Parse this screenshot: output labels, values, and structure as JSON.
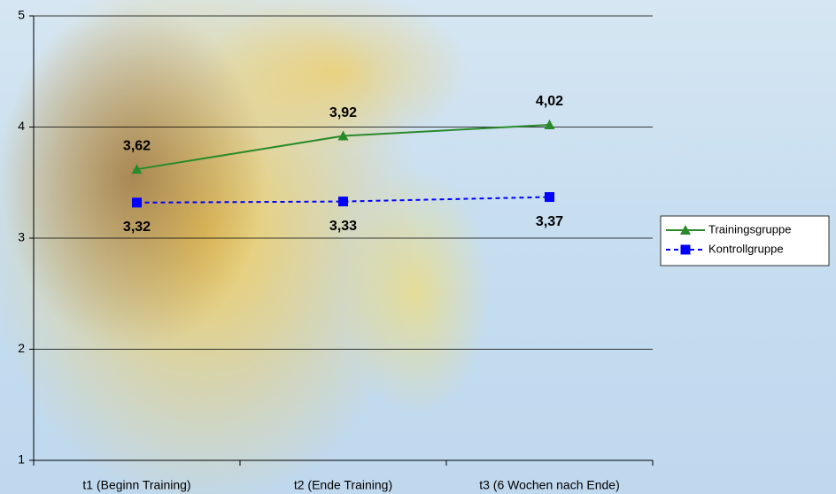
{
  "chart_data": {
    "type": "line",
    "categories": [
      "t1 (Beginn Training)",
      "t2 (Ende Training)",
      "t3 (6 Wochen nach Ende)"
    ],
    "series": [
      {
        "name": "Trainingsgruppe",
        "color": "#2a8a2a",
        "marker": "triangle",
        "line_style": "solid",
        "label_position": "above",
        "values": [
          3.62,
          3.92,
          4.02
        ],
        "value_labels": [
          "3,62",
          "3,92",
          "4,02"
        ]
      },
      {
        "name": "Kontrollgruppe",
        "color": "#0000ff",
        "marker": "square",
        "line_style": "dashed",
        "label_position": "below",
        "values": [
          3.32,
          3.33,
          3.37
        ],
        "value_labels": [
          "3,32",
          "3,33",
          "3,37"
        ]
      }
    ],
    "ylim": [
      1,
      5
    ],
    "yticks": [
      1,
      2,
      3,
      4,
      5
    ],
    "grid": true,
    "legend": "right"
  }
}
